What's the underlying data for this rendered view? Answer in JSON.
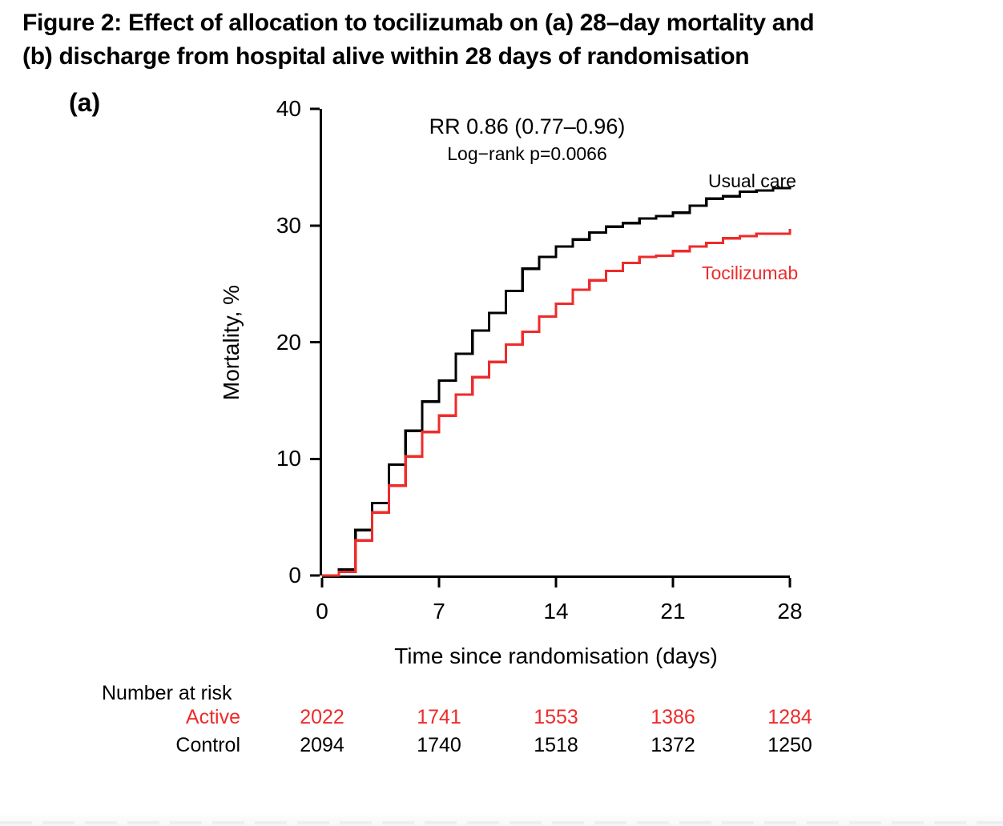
{
  "figure": {
    "title_line1": "Figure 2: Effect of allocation to tocilizumab on (a) 28–day mortality and",
    "title_line2": "(b) discharge from hospital alive within 28 days of randomisation",
    "panel_label": "(a)"
  },
  "chart_data": {
    "type": "line",
    "subtype": "kaplan-meier-step",
    "title": "",
    "xlabel": "Time since randomisation (days)",
    "ylabel": "Mortality, %",
    "xlim": [
      0,
      28
    ],
    "ylim": [
      0,
      40
    ],
    "x_ticks": [
      0,
      7,
      14,
      21,
      28
    ],
    "y_ticks": [
      0,
      10,
      20,
      30,
      40
    ],
    "grid": false,
    "legend_position": "inline-labels",
    "annotation": {
      "line1": "RR 0.86 (0.77–0.96)",
      "line2": "Log−rank p=0.0066"
    },
    "x": [
      0,
      1,
      2,
      3,
      4,
      5,
      6,
      7,
      8,
      9,
      10,
      11,
      12,
      13,
      14,
      15,
      16,
      17,
      18,
      19,
      20,
      21,
      22,
      23,
      24,
      25,
      26,
      27,
      28
    ],
    "series": [
      {
        "name": "Usual care",
        "color": "#000000",
        "values": [
          0,
          0.5,
          3.9,
          6.2,
          9.5,
          12.4,
          14.9,
          16.7,
          19.0,
          21.0,
          22.5,
          24.4,
          26.3,
          27.3,
          28.2,
          28.8,
          29.4,
          29.9,
          30.2,
          30.6,
          30.8,
          31.1,
          31.7,
          32.3,
          32.5,
          32.9,
          33.0,
          33.2,
          33.3
        ]
      },
      {
        "name": "Tocilizumab",
        "color": "#ee2b2b",
        "values": [
          0,
          0.3,
          3.0,
          5.4,
          7.7,
          10.2,
          12.3,
          13.7,
          15.5,
          17.0,
          18.3,
          19.8,
          20.9,
          22.2,
          23.3,
          24.5,
          25.3,
          26.1,
          26.8,
          27.3,
          27.4,
          27.8,
          28.2,
          28.5,
          28.9,
          29.1,
          29.3,
          29.3,
          29.7
        ]
      }
    ]
  },
  "risk_table": {
    "header": "Number at risk",
    "times": [
      0,
      7,
      14,
      21,
      28
    ],
    "rows": [
      {
        "label": "Active",
        "color": "#ee2b2b",
        "counts": [
          "2022",
          "1741",
          "1553",
          "1386",
          "1284"
        ]
      },
      {
        "label": "Control",
        "color": "#000000",
        "counts": [
          "2094",
          "1740",
          "1518",
          "1372",
          "1250"
        ]
      }
    ]
  },
  "colors": {
    "usual_care": "#000000",
    "tocilizumab": "#ee2b2b",
    "axis": "#000000",
    "background": "#ffffff"
  }
}
